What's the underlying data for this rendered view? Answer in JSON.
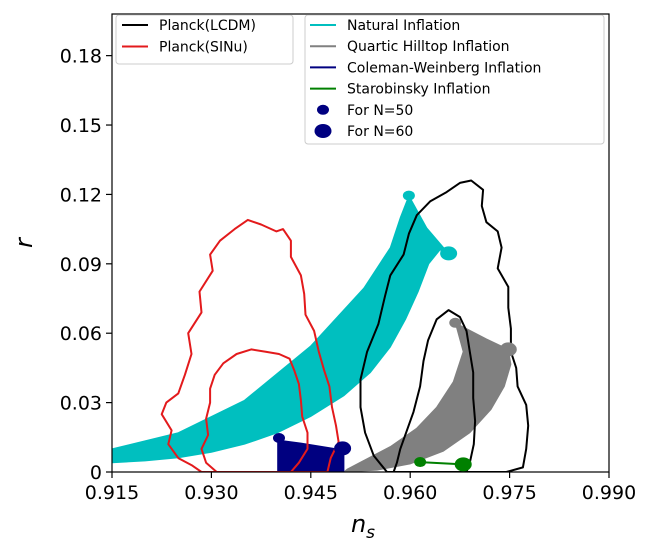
{
  "chart_data": {
    "type": "scatter",
    "title": "",
    "xlabel_base": "n",
    "xlabel_sub": "s",
    "ylabel": "r",
    "xlim": [
      0.915,
      0.99
    ],
    "ylim": [
      0,
      0.198
    ],
    "xticks": [
      0.915,
      0.93,
      0.945,
      0.96,
      0.975,
      0.99
    ],
    "xtick_labels": [
      "0.915",
      "0.930",
      "0.945",
      "0.960",
      "0.975",
      "0.990"
    ],
    "yticks": [
      0,
      0.03,
      0.06,
      0.09,
      0.12,
      0.15,
      0.18
    ],
    "ytick_labels": [
      "0",
      "0.03",
      "0.06",
      "0.09",
      "0.12",
      "0.15",
      "0.18"
    ],
    "legend_left": [
      {
        "label": "Planck(LCDM)",
        "color": "#000000",
        "kind": "line"
      },
      {
        "label": "Planck(SINu)",
        "color": "#e31a1c",
        "kind": "line"
      }
    ],
    "legend_right": [
      {
        "label": "Natural Inflation",
        "color": "#00bfbf",
        "kind": "line"
      },
      {
        "label": "Quartic Hilltop Inflation",
        "color": "#808080",
        "kind": "line"
      },
      {
        "label": "Coleman-Weinberg Inflation",
        "color": "#000080",
        "kind": "line"
      },
      {
        "label": "Starobinsky Inflation",
        "color": "#008000",
        "kind": "line"
      },
      {
        "label": "For N=50",
        "color": "#000080",
        "kind": "small-dot"
      },
      {
        "label": "For N=60",
        "color": "#000080",
        "kind": "big-dot"
      }
    ],
    "series": [
      {
        "name": "Planck(SINu) 2-sigma contour",
        "type": "line",
        "closed": true,
        "color": "#e31a1c",
        "points": [
          [
            0.9325,
            0.0
          ],
          [
            0.9285,
            0.0
          ],
          [
            0.927,
            0.003
          ],
          [
            0.925,
            0.006
          ],
          [
            0.9235,
            0.012
          ],
          [
            0.924,
            0.018
          ],
          [
            0.9225,
            0.025
          ],
          [
            0.9232,
            0.03
          ],
          [
            0.925,
            0.034
          ],
          [
            0.926,
            0.042
          ],
          [
            0.927,
            0.051
          ],
          [
            0.9265,
            0.06
          ],
          [
            0.9285,
            0.069
          ],
          [
            0.9282,
            0.078
          ],
          [
            0.9302,
            0.087
          ],
          [
            0.9298,
            0.094
          ],
          [
            0.9313,
            0.1
          ],
          [
            0.9335,
            0.105
          ],
          [
            0.9355,
            0.109
          ],
          [
            0.9375,
            0.107
          ],
          [
            0.9398,
            0.104
          ],
          [
            0.9408,
            0.105
          ],
          [
            0.942,
            0.1
          ],
          [
            0.942,
            0.093
          ],
          [
            0.9435,
            0.085
          ],
          [
            0.944,
            0.077
          ],
          [
            0.9442,
            0.068
          ],
          [
            0.9455,
            0.061
          ],
          [
            0.9462,
            0.052
          ],
          [
            0.947,
            0.044
          ],
          [
            0.9478,
            0.037
          ],
          [
            0.9482,
            0.028
          ],
          [
            0.9488,
            0.02
          ],
          [
            0.9492,
            0.013
          ],
          [
            0.948,
            0.006
          ],
          [
            0.9475,
            0.0
          ]
        ]
      },
      {
        "name": "Planck(SINu) 1-sigma contour",
        "type": "line",
        "closed": true,
        "color": "#e31a1c",
        "points": [
          [
            0.9308,
            0.0
          ],
          [
            0.9292,
            0.004
          ],
          [
            0.9285,
            0.01
          ],
          [
            0.9295,
            0.016
          ],
          [
            0.9292,
            0.023
          ],
          [
            0.9298,
            0.03
          ],
          [
            0.9298,
            0.036
          ],
          [
            0.9305,
            0.042
          ],
          [
            0.9318,
            0.047
          ],
          [
            0.9338,
            0.051
          ],
          [
            0.936,
            0.053
          ],
          [
            0.9382,
            0.052
          ],
          [
            0.9402,
            0.051
          ],
          [
            0.9418,
            0.049
          ],
          [
            0.9425,
            0.044
          ],
          [
            0.9432,
            0.038
          ],
          [
            0.9435,
            0.031
          ],
          [
            0.9437,
            0.024
          ],
          [
            0.9445,
            0.017
          ],
          [
            0.9445,
            0.01
          ],
          [
            0.9432,
            0.004
          ],
          [
            0.942,
            0.0
          ]
        ]
      },
      {
        "name": "Planck(LCDM) 2-sigma contour",
        "type": "line",
        "closed": true,
        "color": "#000000",
        "points": [
          [
            0.9565,
            0.0
          ],
          [
            0.9545,
            0.007
          ],
          [
            0.9532,
            0.017
          ],
          [
            0.9525,
            0.028
          ],
          [
            0.9525,
            0.04
          ],
          [
            0.9535,
            0.052
          ],
          [
            0.9552,
            0.064
          ],
          [
            0.9562,
            0.076
          ],
          [
            0.957,
            0.085
          ],
          [
            0.959,
            0.094
          ],
          [
            0.9598,
            0.103
          ],
          [
            0.961,
            0.111
          ],
          [
            0.963,
            0.117
          ],
          [
            0.9655,
            0.121
          ],
          [
            0.9675,
            0.125
          ],
          [
            0.9692,
            0.126
          ],
          [
            0.971,
            0.122
          ],
          [
            0.9708,
            0.115
          ],
          [
            0.9715,
            0.108
          ],
          [
            0.9732,
            0.104
          ],
          [
            0.9738,
            0.097
          ],
          [
            0.9732,
            0.088
          ],
          [
            0.9748,
            0.08
          ],
          [
            0.9748,
            0.071
          ],
          [
            0.9752,
            0.062
          ],
          [
            0.9752,
            0.052
          ],
          [
            0.976,
            0.045
          ],
          [
            0.9762,
            0.037
          ],
          [
            0.9775,
            0.029
          ],
          [
            0.9778,
            0.02
          ],
          [
            0.9775,
            0.01
          ],
          [
            0.977,
            0.002
          ],
          [
            0.9745,
            0.0
          ]
        ]
      },
      {
        "name": "Planck(LCDM) 1-sigma contour",
        "type": "line",
        "closed": true,
        "color": "#000000",
        "points": [
          [
            0.9575,
            0.0
          ],
          [
            0.958,
            0.004
          ],
          [
            0.9585,
            0.01
          ],
          [
            0.9595,
            0.018
          ],
          [
            0.9605,
            0.026
          ],
          [
            0.9615,
            0.037
          ],
          [
            0.962,
            0.048
          ],
          [
            0.9627,
            0.057
          ],
          [
            0.964,
            0.066
          ],
          [
            0.9658,
            0.07
          ],
          [
            0.9675,
            0.067
          ],
          [
            0.9685,
            0.061
          ],
          [
            0.969,
            0.052
          ],
          [
            0.9695,
            0.043
          ],
          [
            0.9695,
            0.032
          ],
          [
            0.9698,
            0.022
          ],
          [
            0.9696,
            0.012
          ],
          [
            0.969,
            0.004
          ],
          [
            0.9685,
            0.0
          ]
        ]
      },
      {
        "name": "Natural Inflation",
        "type": "area",
        "color": "#00bfbf",
        "points": [
          [
            0.915,
            0.004
          ],
          [
            0.92,
            0.0048
          ],
          [
            0.925,
            0.0062
          ],
          [
            0.93,
            0.0085
          ],
          [
            0.935,
            0.012
          ],
          [
            0.94,
            0.017
          ],
          [
            0.945,
            0.024
          ],
          [
            0.95,
            0.033
          ],
          [
            0.954,
            0.043
          ],
          [
            0.957,
            0.054
          ],
          [
            0.9593,
            0.066
          ],
          [
            0.9612,
            0.078
          ],
          [
            0.9628,
            0.09
          ],
          [
            0.9645,
            0.096
          ],
          [
            0.9658,
            0.0945
          ],
          [
            0.9625,
            0.1055
          ],
          [
            0.9598,
            0.1195
          ],
          [
            0.9585,
            0.11
          ],
          [
            0.957,
            0.097
          ],
          [
            0.953,
            0.0795
          ],
          [
            0.945,
            0.0545
          ],
          [
            0.935,
            0.031
          ],
          [
            0.925,
            0.017
          ],
          [
            0.915,
            0.01
          ]
        ]
      },
      {
        "name": "Quartic Hilltop Inflation",
        "type": "area",
        "color": "#808080",
        "points": [
          [
            0.95,
            0.0
          ],
          [
            0.955,
            0.0008
          ],
          [
            0.96,
            0.0035
          ],
          [
            0.965,
            0.009
          ],
          [
            0.969,
            0.017
          ],
          [
            0.9722,
            0.027
          ],
          [
            0.9742,
            0.037
          ],
          [
            0.9752,
            0.0465
          ],
          [
            0.9748,
            0.053
          ],
          [
            0.9715,
            0.0575
          ],
          [
            0.9668,
            0.0645
          ],
          [
            0.968,
            0.052
          ],
          [
            0.9665,
            0.039
          ],
          [
            0.964,
            0.028
          ],
          [
            0.961,
            0.019
          ],
          [
            0.957,
            0.011
          ],
          [
            0.953,
            0.005
          ],
          [
            0.9505,
            0.0012
          ]
        ]
      },
      {
        "name": "Coleman-Weinberg Inflation",
        "type": "area",
        "color": "#000080",
        "points": [
          [
            0.94,
            0.0
          ],
          [
            0.95,
            0.0
          ],
          [
            0.95,
            0.0095
          ],
          [
            0.9435,
            0.0125
          ],
          [
            0.9408,
            0.0135
          ],
          [
            0.94,
            0.013
          ]
        ]
      },
      {
        "name": "Starobinsky Inflation",
        "type": "line",
        "closed": false,
        "color": "#008000",
        "points": [
          [
            0.9615,
            0.0043
          ],
          [
            0.968,
            0.0033
          ]
        ]
      }
    ],
    "markers": [
      {
        "model": "Natural Inflation",
        "N": 50,
        "x": 0.9598,
        "y": 0.1195,
        "color": "#00bfbf"
      },
      {
        "model": "Natural Inflation",
        "N": 60,
        "x": 0.9658,
        "y": 0.0945,
        "color": "#00bfbf"
      },
      {
        "model": "Quartic Hilltop Inflation",
        "N": 50,
        "x": 0.9668,
        "y": 0.0645,
        "color": "#808080"
      },
      {
        "model": "Quartic Hilltop Inflation",
        "N": 60,
        "x": 0.9748,
        "y": 0.053,
        "color": "#808080"
      },
      {
        "model": "Coleman-Weinberg Inflation",
        "N": 50,
        "x": 0.9402,
        "y": 0.0147,
        "color": "#000080"
      },
      {
        "model": "Coleman-Weinberg Inflation",
        "N": 60,
        "x": 0.9498,
        "y": 0.0102,
        "color": "#000080"
      },
      {
        "model": "Starobinsky Inflation",
        "N": 50,
        "x": 0.9615,
        "y": 0.0043,
        "color": "#008000"
      },
      {
        "model": "Starobinsky Inflation",
        "N": 60,
        "x": 0.968,
        "y": 0.0033,
        "color": "#008000"
      }
    ]
  }
}
